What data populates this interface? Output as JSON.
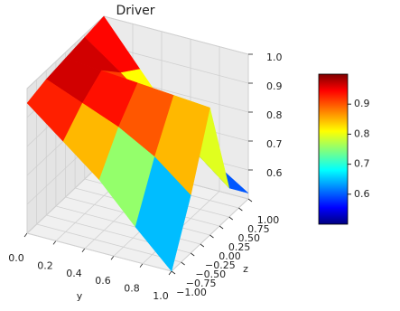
{
  "chart_data": {
    "type": "surface",
    "title": "Driver",
    "xlabel": "y",
    "zlabel": "z",
    "x": [
      0,
      0.25,
      0.5,
      0.75,
      1
    ],
    "z": [
      -1,
      -0.5,
      0,
      0.5,
      1
    ],
    "values": [
      [
        0.95,
        0.85,
        0.75,
        0.62,
        0.5
      ],
      [
        0.97,
        0.92,
        0.87,
        0.8,
        0.7
      ],
      [
        0.98,
        0.97,
        0.96,
        0.95,
        0.94
      ],
      [
        0.99,
        0.9,
        0.8,
        0.7,
        0.6
      ],
      [
        1.0,
        0.85,
        0.7,
        0.6,
        0.52
      ]
    ],
    "xlim": [
      0,
      1
    ],
    "xticks": [
      {
        "value": 0,
        "label": "0.0"
      },
      0.2,
      0.4,
      0.6,
      0.8,
      {
        "value": 1,
        "label": "1.0"
      }
    ],
    "zlim": [
      -1,
      1
    ],
    "zticks": [
      {
        "value": -1,
        "label": "−1.00"
      },
      {
        "value": -0.75,
        "label": "−0.75"
      },
      {
        "value": -0.5,
        "label": "−0.50"
      },
      {
        "value": -0.25,
        "label": "−0.25"
      },
      {
        "value": 0,
        "label": "0.00"
      },
      {
        "value": 0.25,
        "label": "0.25"
      },
      {
        "value": 0.5,
        "label": "0.50"
      },
      {
        "value": 0.75,
        "label": "0.75"
      },
      {
        "value": 1,
        "label": "1.00"
      }
    ],
    "ylim": [
      0.5,
      1.0
    ],
    "yticks": [
      0.6,
      0.7,
      0.8,
      0.9,
      {
        "value": 1,
        "label": "1.0"
      }
    ],
    "colormap": "jet",
    "colorbar": {
      "lim": [
        0.5,
        1.0
      ],
      "ticks": [
        0.6,
        0.7,
        0.8,
        0.9
      ]
    }
  }
}
